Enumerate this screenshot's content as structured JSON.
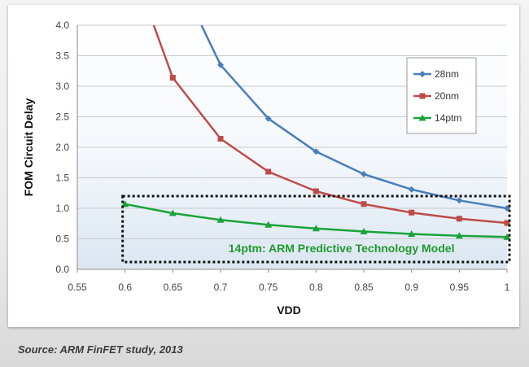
{
  "chart_data": {
    "type": "line",
    "xlabel": "VDD",
    "ylabel": "FOM Circuit Delay",
    "xlim": [
      0.55,
      1.0
    ],
    "ylim": [
      0,
      4
    ],
    "x_ticks": [
      "0.55",
      "0.6",
      "0.65",
      "0.7",
      "0.75",
      "0.8",
      "0.85",
      "0.9",
      "0.95",
      "1"
    ],
    "y_ticks": [
      "0.0",
      "0.5",
      "1.0",
      "1.5",
      "2.0",
      "2.5",
      "3.0",
      "3.5",
      "4.0"
    ],
    "grid": "horizontal",
    "legend_position": "top-right",
    "series": [
      {
        "name": "28nm",
        "color": "#4a7ebb",
        "marker": "diamond",
        "points": [
          [
            0.7,
            3.35
          ],
          [
            0.75,
            2.47
          ],
          [
            0.8,
            1.93
          ],
          [
            0.85,
            1.56
          ],
          [
            0.9,
            1.31
          ],
          [
            0.95,
            1.13
          ],
          [
            1.0,
            1.0
          ]
        ],
        "lead_in": [
          [
            0.68,
            4.0
          ]
        ]
      },
      {
        "name": "20nm",
        "color": "#be4b48",
        "marker": "square",
        "points": [
          [
            0.65,
            3.14
          ],
          [
            0.7,
            2.14
          ],
          [
            0.75,
            1.6
          ],
          [
            0.8,
            1.28
          ],
          [
            0.85,
            1.07
          ],
          [
            0.9,
            0.93
          ],
          [
            0.95,
            0.83
          ],
          [
            1.0,
            0.76
          ]
        ],
        "lead_in": [
          [
            0.63,
            4.0
          ]
        ]
      },
      {
        "name": "14ptm",
        "color": "#1aa33a",
        "marker": "triangle",
        "points": [
          [
            0.6,
            1.07
          ],
          [
            0.65,
            0.92
          ],
          [
            0.7,
            0.81
          ],
          [
            0.75,
            0.73
          ],
          [
            0.8,
            0.67
          ],
          [
            0.85,
            0.62
          ],
          [
            0.9,
            0.58
          ],
          [
            0.95,
            0.55
          ],
          [
            1.0,
            0.53
          ]
        ],
        "lead_in": []
      }
    ],
    "annotation": {
      "text": "14ptm:  ARM Predictive Technology Model",
      "color": "#1f9a2e",
      "box_x_range": [
        0.6,
        1.0
      ],
      "box_y_range": [
        0.12,
        1.2
      ],
      "text_position": [
        0.945,
        0.28
      ]
    }
  },
  "caption": "Source: ARM FinFET study, 2013"
}
